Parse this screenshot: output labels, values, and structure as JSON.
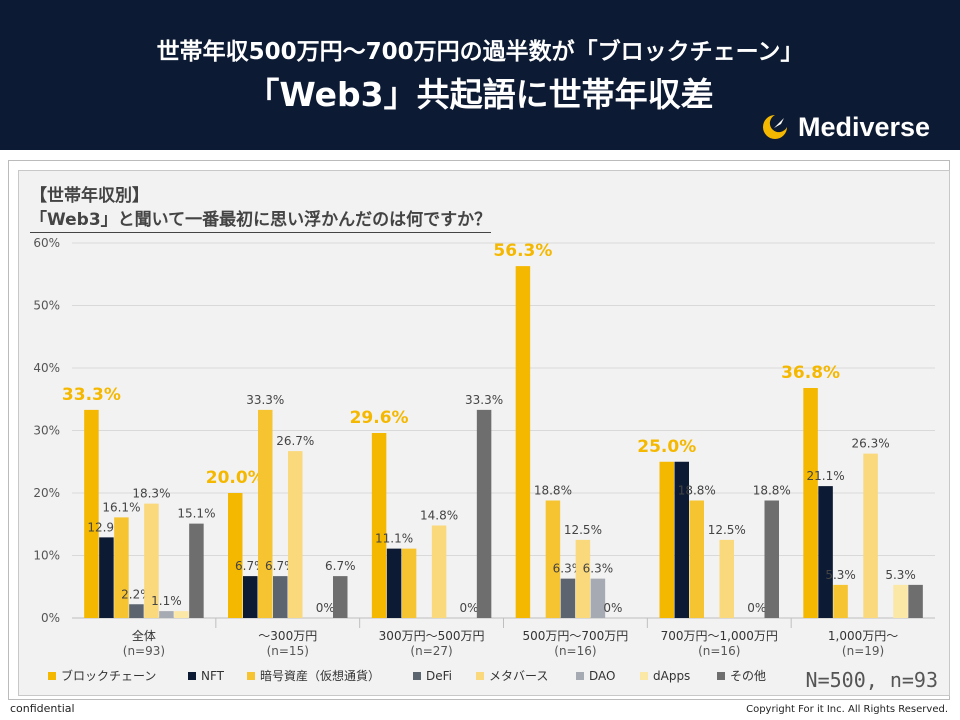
{
  "header": {
    "title_line1": "世帯年収500万円〜700万円の過半数が「ブロックチェーン」",
    "title_line2": "「Web3」共起語に世帯年収差",
    "logo_text": "Mediverse"
  },
  "subtitle": {
    "line1": "【世帯年収別】",
    "line2": "「Web3」と聞いて一番最初に思い浮かんだのは何ですか？"
  },
  "sample_note": "N=500, n=93",
  "footer": {
    "left": "confidential",
    "right": "Copyright For it Inc. All Rights Reserved."
  },
  "chart_data": {
    "type": "bar",
    "ylim": [
      0,
      60
    ],
    "yticks": [
      "0%",
      "10%",
      "20%",
      "30%",
      "40%",
      "50%",
      "60%"
    ],
    "categories": [
      {
        "label": "全体",
        "n": "(n=93)"
      },
      {
        "label": "〜300万円",
        "n": "(n=15)"
      },
      {
        "label": "300万円〜500万円",
        "n": "(n=27)"
      },
      {
        "label": "500万円〜700万円",
        "n": "(n=16)"
      },
      {
        "label": "700万円〜1,000万円",
        "n": "(n=16)"
      },
      {
        "label": "1,000万円〜",
        "n": "(n=19)"
      }
    ],
    "series": [
      {
        "name": "ブロックチェーン",
        "color": "#f5b800",
        "values": [
          33.3,
          20.0,
          29.6,
          56.3,
          25.0,
          36.8
        ],
        "labels": [
          "33.3%",
          "20.0%",
          "29.6%",
          "56.3%",
          "25.0%",
          "36.8%"
        ]
      },
      {
        "name": "NFT",
        "color": "#0c1a33",
        "values": [
          12.9,
          6.7,
          11.1,
          0,
          25.0,
          21.1
        ],
        "labels": [
          "12.9%",
          "6.7%",
          "11.1%",
          "",
          "",
          "21.1%"
        ]
      },
      {
        "name": "暗号資産（仮想通貨）",
        "color": "#f7c431",
        "values": [
          16.1,
          33.3,
          11.1,
          18.8,
          18.8,
          5.3
        ],
        "labels": [
          "16.1%",
          "33.3%",
          "",
          "18.8%",
          "18.8%",
          "5.3%"
        ]
      },
      {
        "name": "DeFi",
        "color": "#5c6470",
        "values": [
          2.2,
          6.7,
          0,
          6.3,
          0,
          0
        ],
        "labels": [
          "2.2%",
          "6.7%",
          "",
          "6.3%",
          "",
          ""
        ]
      },
      {
        "name": "メタバース",
        "color": "#f9d97c",
        "values": [
          18.3,
          26.7,
          14.8,
          12.5,
          12.5,
          26.3
        ],
        "labels": [
          "18.3%",
          "26.7%",
          "14.8%",
          "12.5%",
          "12.5%",
          "26.3%"
        ]
      },
      {
        "name": "DAO",
        "color": "#a6abb3",
        "values": [
          1.1,
          0,
          0,
          6.3,
          0,
          0
        ],
        "labels": [
          "1.1%",
          "",
          "",
          "6.3%",
          "",
          ""
        ]
      },
      {
        "name": "dApps",
        "color": "#fbe7a6",
        "values": [
          1.1,
          0,
          0,
          0,
          0,
          5.3
        ],
        "labels": [
          "",
          "0%",
          "0%",
          "0%",
          "0%",
          "5.3%"
        ]
      },
      {
        "name": "その他",
        "color": "#6e6e6e",
        "values": [
          15.1,
          6.7,
          33.3,
          0,
          18.8,
          5.3
        ],
        "labels": [
          "15.1%",
          "6.7%",
          "33.3%",
          "",
          "18.8%",
          ""
        ]
      }
    ]
  }
}
